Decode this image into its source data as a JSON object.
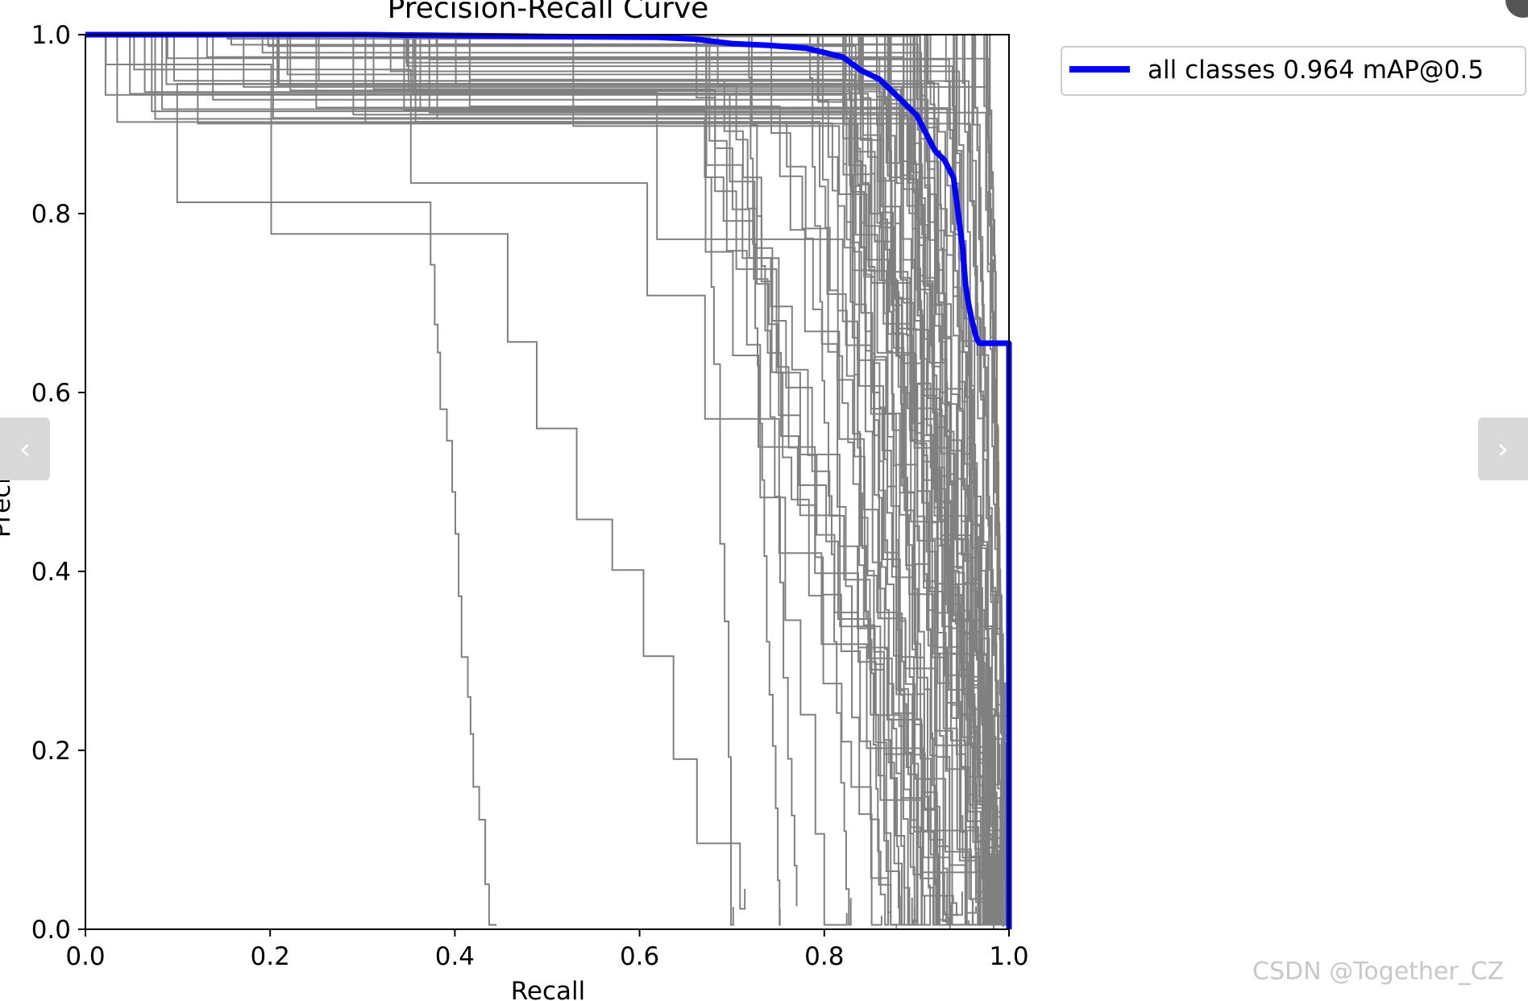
{
  "chart_data": {
    "type": "line",
    "title": "Precision-Recall Curve",
    "xlabel": "Recall",
    "ylabel": "Precision",
    "xlim": [
      0.0,
      1.0
    ],
    "ylim": [
      0.0,
      1.0
    ],
    "xticks": [
      "0.0",
      "0.2",
      "0.4",
      "0.6",
      "0.8",
      "1.0"
    ],
    "yticks": [
      "0.0",
      "0.2",
      "0.4",
      "0.6",
      "0.8",
      "1.0"
    ],
    "grid": false,
    "legend": {
      "placement": "outside-top-right"
    },
    "colors": {
      "class_curves": "#808080",
      "all_classes": "#0000ff"
    },
    "series": [
      {
        "name": "all classes 0.964 mAP@0.5",
        "x": [
          0.0,
          0.3,
          0.5,
          0.62,
          0.66,
          0.7,
          0.74,
          0.78,
          0.8,
          0.82,
          0.84,
          0.86,
          0.88,
          0.9,
          0.91,
          0.92,
          0.93,
          0.94,
          0.945,
          0.95,
          0.953,
          0.956,
          0.96,
          0.965,
          0.968,
          0.97,
          0.98,
          1.0,
          1.0
        ],
        "y": [
          1.0,
          1.0,
          0.998,
          0.997,
          0.995,
          0.99,
          0.988,
          0.985,
          0.98,
          0.975,
          0.96,
          0.95,
          0.93,
          0.91,
          0.89,
          0.87,
          0.86,
          0.84,
          0.8,
          0.76,
          0.72,
          0.7,
          0.68,
          0.66,
          0.655,
          0.655,
          0.655,
          0.655,
          0.0
        ]
      }
    ]
  },
  "nav": {
    "prev_icon": "‹",
    "next_icon": "›"
  },
  "watermark": "CSDN @Together_CZ"
}
